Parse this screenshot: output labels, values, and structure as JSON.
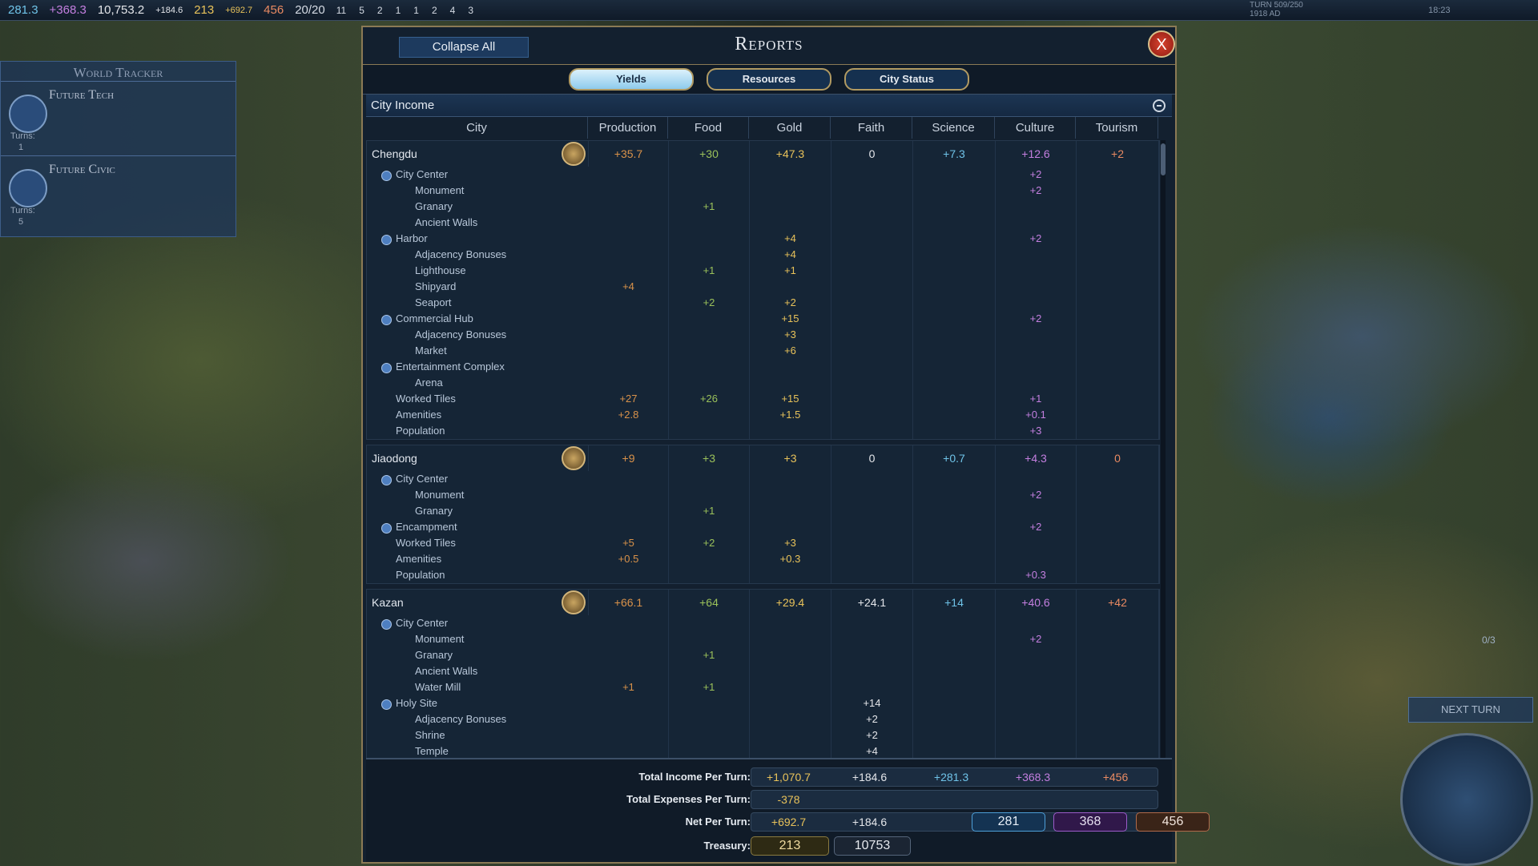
{
  "top_bar": {
    "science": "281.3",
    "culture": "+368.3",
    "faith": "10,753.2",
    "faith_rate": "+184.6",
    "gold": "213",
    "gold_rate": "+692.7",
    "tourism": "456",
    "trade_routes": "20/20",
    "counts": [
      "11",
      "5",
      "2",
      "1",
      "1",
      "2",
      "4",
      "3"
    ],
    "turn": "TURN 509/250",
    "date": "1918 AD",
    "clock": "18:23"
  },
  "world_tracker": {
    "title": "World Tracker",
    "items": [
      {
        "name": "Future Tech",
        "turns_label": "Turns:",
        "turns": "1"
      },
      {
        "name": "Future Civic",
        "turns_label": "Turns:",
        "turns": "5"
      }
    ]
  },
  "reports": {
    "title": "Reports",
    "collapse": "Collapse All",
    "close": "X",
    "tabs": [
      "Yields",
      "Resources",
      "City Status"
    ],
    "section": "City Income",
    "columns": [
      "City",
      "Production",
      "Food",
      "Gold",
      "Faith",
      "Science",
      "Culture",
      "Tourism"
    ],
    "cities": [
      {
        "name": "Chengdu",
        "totals": [
          "+35.7",
          "+30",
          "+47.3",
          "0",
          "+7.3",
          "+12.6",
          "+2"
        ],
        "rows": [
          {
            "label": "City Center",
            "cells": [
              null,
              null,
              null,
              null,
              null,
              "+2",
              null
            ],
            "items": [
              {
                "label": "Monument",
                "cells": [
                  null,
                  null,
                  null,
                  null,
                  null,
                  "+2",
                  null
                ]
              },
              {
                "label": "Granary",
                "cells": [
                  null,
                  "+1",
                  null,
                  null,
                  null,
                  null,
                  null
                ]
              },
              {
                "label": "Ancient Walls",
                "cells": [
                  null,
                  null,
                  null,
                  null,
                  null,
                  null,
                  null
                ]
              }
            ]
          },
          {
            "label": "Harbor",
            "cells": [
              null,
              null,
              "+4",
              null,
              null,
              "+2",
              null
            ],
            "items": [
              {
                "label": "Adjacency Bonuses",
                "cells": [
                  null,
                  null,
                  "+4",
                  null,
                  null,
                  null,
                  null
                ]
              },
              {
                "label": "Lighthouse",
                "cells": [
                  null,
                  "+1",
                  "+1",
                  null,
                  null,
                  null,
                  null
                ]
              },
              {
                "label": "Shipyard",
                "cells": [
                  "+4",
                  null,
                  null,
                  null,
                  null,
                  null,
                  null
                ]
              },
              {
                "label": "Seaport",
                "cells": [
                  null,
                  "+2",
                  "+2",
                  null,
                  null,
                  null,
                  null
                ]
              }
            ]
          },
          {
            "label": "Commercial Hub",
            "cells": [
              null,
              null,
              "+15",
              null,
              null,
              "+2",
              null
            ],
            "items": [
              {
                "label": "Adjacency Bonuses",
                "cells": [
                  null,
                  null,
                  "+3",
                  null,
                  null,
                  null,
                  null
                ]
              },
              {
                "label": "Market",
                "cells": [
                  null,
                  null,
                  "+6",
                  null,
                  null,
                  null,
                  null
                ]
              }
            ]
          },
          {
            "label": "Entertainment Complex",
            "cells": [
              null,
              null,
              null,
              null,
              null,
              null,
              null
            ],
            "items": [
              {
                "label": "Arena",
                "cells": [
                  null,
                  null,
                  null,
                  null,
                  null,
                  null,
                  null
                ]
              }
            ]
          },
          {
            "label": "Worked Tiles",
            "cells": [
              "+27",
              "+26",
              "+15",
              null,
              null,
              "+1",
              null
            ]
          },
          {
            "label": "Amenities",
            "cells": [
              "+2.8",
              null,
              "+1.5",
              null,
              null,
              "+0.1",
              null
            ]
          },
          {
            "label": "Population",
            "cells": [
              null,
              null,
              null,
              null,
              null,
              "+3",
              null
            ]
          }
        ]
      },
      {
        "name": "Jiaodong",
        "totals": [
          "+9",
          "+3",
          "+3",
          "0",
          "+0.7",
          "+4.3",
          "0"
        ],
        "rows": [
          {
            "label": "City Center",
            "cells": [
              null,
              null,
              null,
              null,
              null,
              null,
              null
            ],
            "items": [
              {
                "label": "Monument",
                "cells": [
                  null,
                  null,
                  null,
                  null,
                  null,
                  "+2",
                  null
                ]
              },
              {
                "label": "Granary",
                "cells": [
                  null,
                  "+1",
                  null,
                  null,
                  null,
                  null,
                  null
                ]
              }
            ]
          },
          {
            "label": "Encampment",
            "cells": [
              null,
              null,
              null,
              null,
              null,
              "+2",
              null
            ],
            "items": []
          },
          {
            "label": "Worked Tiles",
            "cells": [
              "+5",
              "+2",
              "+3",
              null,
              null,
              null,
              null
            ]
          },
          {
            "label": "Amenities",
            "cells": [
              "+0.5",
              null,
              "+0.3",
              null,
              null,
              null,
              null
            ]
          },
          {
            "label": "Population",
            "cells": [
              null,
              null,
              null,
              null,
              null,
              "+0.3",
              null
            ]
          }
        ]
      },
      {
        "name": "Kazan",
        "totals": [
          "+66.1",
          "+64",
          "+29.4",
          "+24.1",
          "+14",
          "+40.6",
          "+42"
        ],
        "rows": [
          {
            "label": "City Center",
            "cells": [
              null,
              null,
              null,
              null,
              null,
              null,
              null
            ],
            "items": [
              {
                "label": "Monument",
                "cells": [
                  null,
                  null,
                  null,
                  null,
                  null,
                  "+2",
                  null
                ]
              },
              {
                "label": "Granary",
                "cells": [
                  null,
                  "+1",
                  null,
                  null,
                  null,
                  null,
                  null
                ]
              },
              {
                "label": "Ancient Walls",
                "cells": [
                  null,
                  null,
                  null,
                  null,
                  null,
                  null,
                  null
                ]
              },
              {
                "label": "Water Mill",
                "cells": [
                  "+1",
                  "+1",
                  null,
                  null,
                  null,
                  null,
                  null
                ]
              }
            ]
          },
          {
            "label": "Holy Site",
            "cells": [
              null,
              null,
              null,
              "+14",
              null,
              null,
              null
            ],
            "items": [
              {
                "label": "Adjacency Bonuses",
                "cells": [
                  null,
                  null,
                  null,
                  "+2",
                  null,
                  null,
                  null
                ]
              },
              {
                "label": "Shrine",
                "cells": [
                  null,
                  null,
                  null,
                  "+2",
                  null,
                  null,
                  null
                ]
              },
              {
                "label": "Temple",
                "cells": [
                  null,
                  null,
                  null,
                  "+4",
                  null,
                  null,
                  null
                ]
              }
            ]
          }
        ]
      }
    ],
    "footer": {
      "income": {
        "label": "Total Income Per Turn:",
        "cells": [
          "+1,070.7",
          "+184.6",
          "+281.3",
          "+368.3",
          "+456"
        ]
      },
      "expenses": {
        "label": "Total Expenses Per Turn:",
        "cells": [
          "-378"
        ]
      },
      "net": {
        "label": "Net Per Turn:",
        "cells": [
          "+692.7",
          "+184.6",
          "281",
          "368",
          "456"
        ]
      },
      "treasury": {
        "label": "Treasury:",
        "cells": [
          "213",
          "10753"
        ]
      }
    }
  },
  "hud": {
    "next_turn": "NEXT TURN",
    "slots": "0/3"
  }
}
